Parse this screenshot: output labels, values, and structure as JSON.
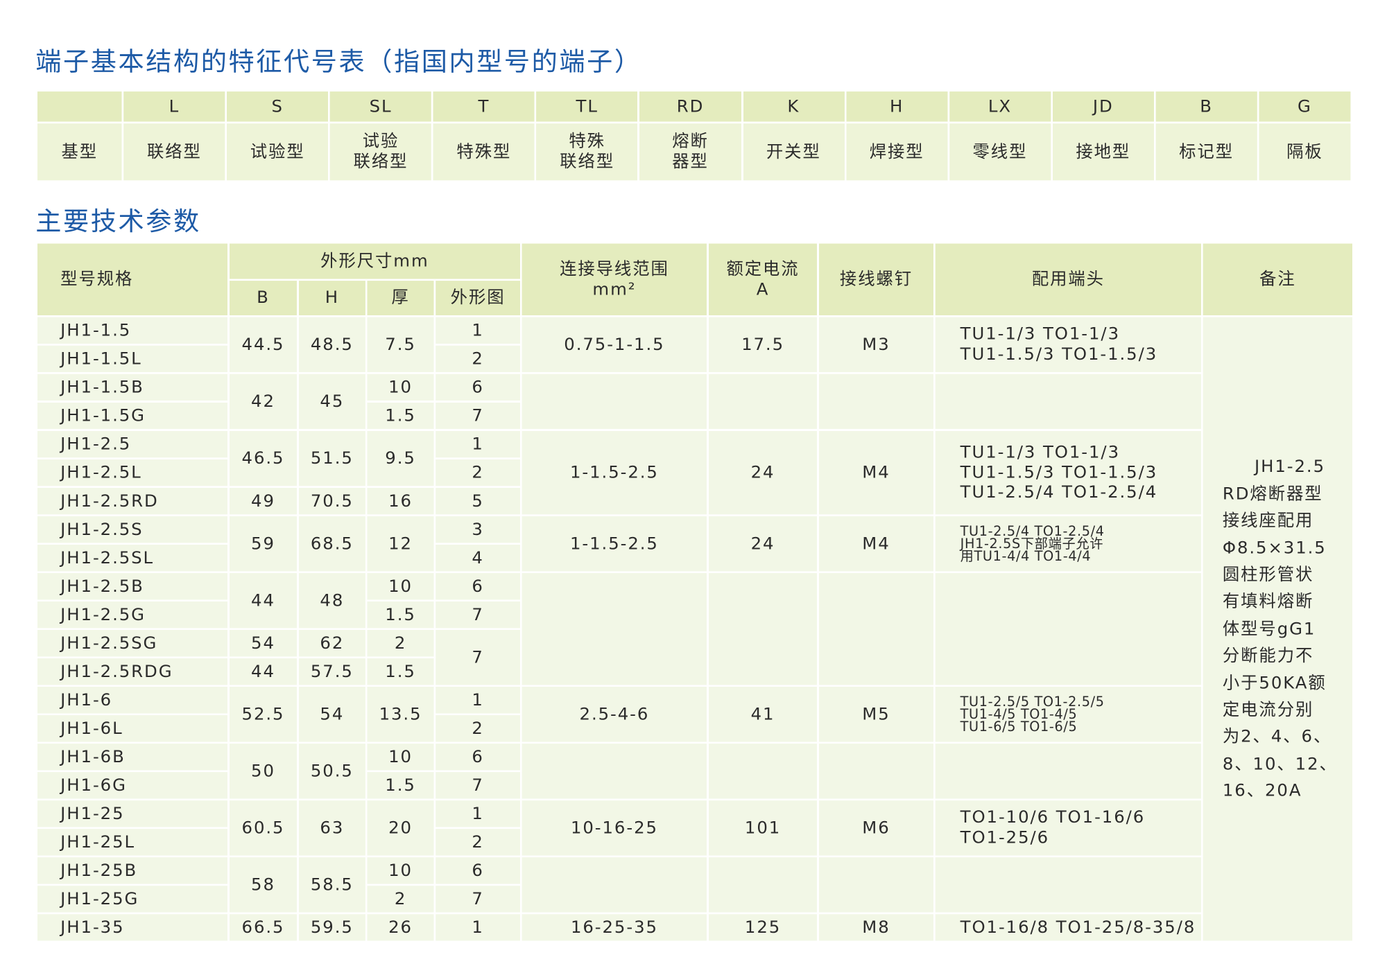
{
  "table1": {
    "title": "端子基本结构的特征代号表（指国内型号的端子）",
    "base": "基型",
    "codes": [
      "L",
      "S",
      "SL",
      "T",
      "TL",
      "RD",
      "K",
      "H",
      "LX",
      "JD",
      "B",
      "G"
    ],
    "names": [
      [
        "联络型"
      ],
      [
        "试验型"
      ],
      [
        "试验",
        "联络型"
      ],
      [
        "特殊型"
      ],
      [
        "特殊",
        "联络型"
      ],
      [
        "熔断",
        "器型"
      ],
      [
        "开关型"
      ],
      [
        "焊接型"
      ],
      [
        "零线型"
      ],
      [
        "接地型"
      ],
      [
        "标记型"
      ],
      [
        "隔板"
      ]
    ]
  },
  "table2": {
    "title": "主要技术参数",
    "headers": {
      "model": "型号规格",
      "dims": "外形尺寸mm",
      "B": "B",
      "H": "H",
      "thickness": "厚",
      "figure": "外形图",
      "wire_range": [
        "连接导线范围",
        "mm²"
      ],
      "current": [
        "额定电流",
        "A"
      ],
      "screw": "接线螺钉",
      "terminals": "配用端头",
      "remarks": "备注"
    },
    "models": [
      "JH1-1.5",
      "JH1-1.5L",
      "JH1-1.5B",
      "JH1-1.5G",
      "JH1-2.5",
      "JH1-2.5L",
      "JH1-2.5RD",
      "JH1-2.5S",
      "JH1-2.5SL",
      "JH1-2.5B",
      "JH1-2.5G",
      "JH1-2.5SG",
      "JH1-2.5RDG",
      "JH1-6",
      "JH1-6L",
      "JH1-6B",
      "JH1-6G",
      "JH1-25",
      "JH1-25L",
      "JH1-25B",
      "JH1-25G",
      "JH1-35"
    ],
    "B": [
      {
        "text": "44.5",
        "rowspan": 2
      },
      {
        "text": "42",
        "rowspan": 2
      },
      {
        "text": "46.5",
        "rowspan": 2
      },
      {
        "text": "49"
      },
      {
        "text": "59",
        "rowspan": 2
      },
      {
        "text": "44",
        "rowspan": 2
      },
      {
        "text": "54"
      },
      {
        "text": "44"
      },
      {
        "text": "52.5",
        "rowspan": 2
      },
      {
        "text": "50",
        "rowspan": 2
      },
      {
        "text": "60.5",
        "rowspan": 2
      },
      {
        "text": "58",
        "rowspan": 2
      },
      {
        "text": "66.5"
      }
    ],
    "H": [
      {
        "text": "48.5",
        "rowspan": 2
      },
      {
        "text": "45",
        "rowspan": 2
      },
      {
        "text": "51.5",
        "rowspan": 2
      },
      {
        "text": "70.5"
      },
      {
        "text": "68.5",
        "rowspan": 2
      },
      {
        "text": "48",
        "rowspan": 2
      },
      {
        "text": "62"
      },
      {
        "text": "57.5"
      },
      {
        "text": "54",
        "rowspan": 2
      },
      {
        "text": "50.5",
        "rowspan": 2
      },
      {
        "text": "63",
        "rowspan": 2
      },
      {
        "text": "58.5",
        "rowspan": 2
      },
      {
        "text": "59.5"
      }
    ],
    "thickness": [
      {
        "text": "7.5",
        "rowspan": 2
      },
      {
        "text": "10"
      },
      {
        "text": "1.5"
      },
      {
        "text": "9.5",
        "rowspan": 2
      },
      {
        "text": "16"
      },
      {
        "text": "12",
        "rowspan": 2
      },
      {
        "text": "10"
      },
      {
        "text": "1.5"
      },
      {
        "text": "2"
      },
      {
        "text": "1.5"
      },
      {
        "text": "13.5",
        "rowspan": 2
      },
      {
        "text": "10"
      },
      {
        "text": "1.5"
      },
      {
        "text": "20",
        "rowspan": 2
      },
      {
        "text": "10"
      },
      {
        "text": "2"
      },
      {
        "text": "26"
      }
    ],
    "figure": [
      {
        "text": "1"
      },
      {
        "text": "2"
      },
      {
        "text": "6"
      },
      {
        "text": "7"
      },
      {
        "text": "1"
      },
      {
        "text": "2"
      },
      {
        "text": "5"
      },
      {
        "text": "3"
      },
      {
        "text": "4"
      },
      {
        "text": "6"
      },
      {
        "text": "7"
      },
      {
        "text": "7",
        "rowspan": 2
      },
      {
        "text": "1"
      },
      {
        "text": "2"
      },
      {
        "text": "6"
      },
      {
        "text": "7"
      },
      {
        "text": "1"
      },
      {
        "text": "2"
      },
      {
        "text": "6"
      },
      {
        "text": "7"
      },
      {
        "text": "1"
      }
    ],
    "wire_range": [
      {
        "text": "0.75-1-1.5",
        "rowspan": 2
      },
      {
        "rowspan": 2
      },
      {
        "text": "1-1.5-2.5",
        "rowspan": 3
      },
      {
        "text": "1-1.5-2.5",
        "rowspan": 2
      },
      {
        "rowspan": 4
      },
      {
        "text": "2.5-4-6",
        "rowspan": 2
      },
      {
        "rowspan": 2
      },
      {
        "text": "10-16-25",
        "rowspan": 2
      },
      {
        "rowspan": 2
      },
      {
        "text": "16-25-35"
      }
    ],
    "current": [
      {
        "text": "17.5",
        "rowspan": 2
      },
      {
        "rowspan": 2
      },
      {
        "text": "24",
        "rowspan": 3
      },
      {
        "text": "24",
        "rowspan": 2
      },
      {
        "rowspan": 4
      },
      {
        "text": "41",
        "rowspan": 2
      },
      {
        "rowspan": 2
      },
      {
        "text": "101",
        "rowspan": 2
      },
      {
        "rowspan": 2
      },
      {
        "text": "125"
      }
    ],
    "screw": [
      {
        "text": "M3",
        "rowspan": 2
      },
      {
        "rowspan": 2
      },
      {
        "text": "M4",
        "rowspan": 3
      },
      {
        "text": "M4",
        "rowspan": 2
      },
      {
        "rowspan": 4
      },
      {
        "text": "M5",
        "rowspan": 2
      },
      {
        "rowspan": 2
      },
      {
        "text": "M6",
        "rowspan": 2
      },
      {
        "rowspan": 2
      },
      {
        "text": "M8"
      }
    ],
    "terminals": [
      {
        "lines": [
          "TU1-1/3 TO1-1/3",
          "TU1-1.5/3 TO1-1.5/3"
        ],
        "rowspan": 2
      },
      {
        "rowspan": 2
      },
      {
        "lines": [
          "TU1-1/3 TO1-1/3",
          "TU1-1.5/3 TO1-1.5/3",
          "TU1-2.5/4 TO1-2.5/4"
        ],
        "rowspan": 3
      },
      {
        "lines": [
          "TU1-2.5/4  TO1-2.5/4",
          "JH1-2.5S下部端子允许",
          "用TU1-4/4  TO1-4/4"
        ],
        "rowspan": 2
      },
      {
        "rowspan": 4
      },
      {
        "lines": [
          "TU1-2.5/5 TO1-2.5/5",
          "TU1-4/5    TO1-4/5",
          "TU1-6/5    TO1-6/5"
        ],
        "rowspan": 2
      },
      {
        "rowspan": 2
      },
      {
        "lines": [
          "TO1-10/6 TO1-16/6",
          "TO1-25/6"
        ],
        "rowspan": 2
      },
      {
        "rowspan": 2
      },
      {
        "lines": [
          "TO1-16/8 TO1-25/8-35/8"
        ]
      }
    ],
    "remarks": [
      "JH1-2.5",
      "RD熔断器型",
      "接线座配用",
      "Φ8.5×31.5",
      "圆柱形管状",
      "有填料熔断",
      "体型号gG1",
      "分断能力不",
      "小于50KA额",
      "定电流分别",
      "为2、4、6、",
      "8、10、12、",
      "16、20A"
    ]
  }
}
